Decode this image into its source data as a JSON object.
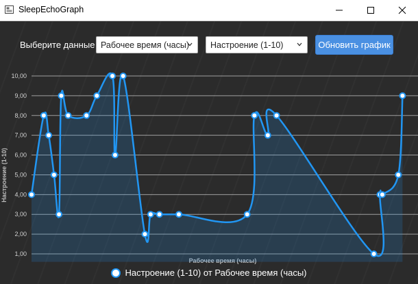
{
  "window": {
    "title": "SleepEchoGraph"
  },
  "toolbar": {
    "select_label": "Выберите данные",
    "x_select": {
      "value": "Рабочее время (часы)"
    },
    "y_select": {
      "value": "Настроение (1-10)"
    },
    "update_button": "Обновить график"
  },
  "colors": {
    "series": "#2196f3",
    "button": "#4a90e2",
    "background": "#2b2b2b"
  },
  "chart_data": {
    "type": "area",
    "title": "",
    "xlabel": "Рабочее время (часы)",
    "ylabel": "Настроение (1-10)",
    "ylim": [
      0.6,
      10.2
    ],
    "yticks": [
      "1,00",
      "2,00",
      "3,00",
      "4,00",
      "5,00",
      "6,00",
      "7,00",
      "8,00",
      "9,00",
      "10,00"
    ],
    "xlim": [
      0,
      100
    ],
    "legend": "bottom-center",
    "series": [
      {
        "name": "Настроение (1-10) от Рабочее время (часы)",
        "x": [
          0,
          3.2,
          4.5,
          5.9,
          7.2,
          7.8,
          9.6,
          14.4,
          17.1,
          21.2,
          21.9,
          24.0,
          29.7,
          31.2,
          33.5,
          38.6,
          56.5,
          58.4,
          61.9,
          64.2,
          89.7,
          91.3,
          91.9,
          96.1,
          97.2
        ],
        "values": [
          4,
          8,
          7,
          5,
          3,
          9,
          8,
          8,
          9,
          10,
          6,
          10,
          2,
          3,
          3,
          3,
          3,
          8,
          7,
          8,
          1,
          4,
          4,
          5,
          9
        ]
      }
    ]
  }
}
